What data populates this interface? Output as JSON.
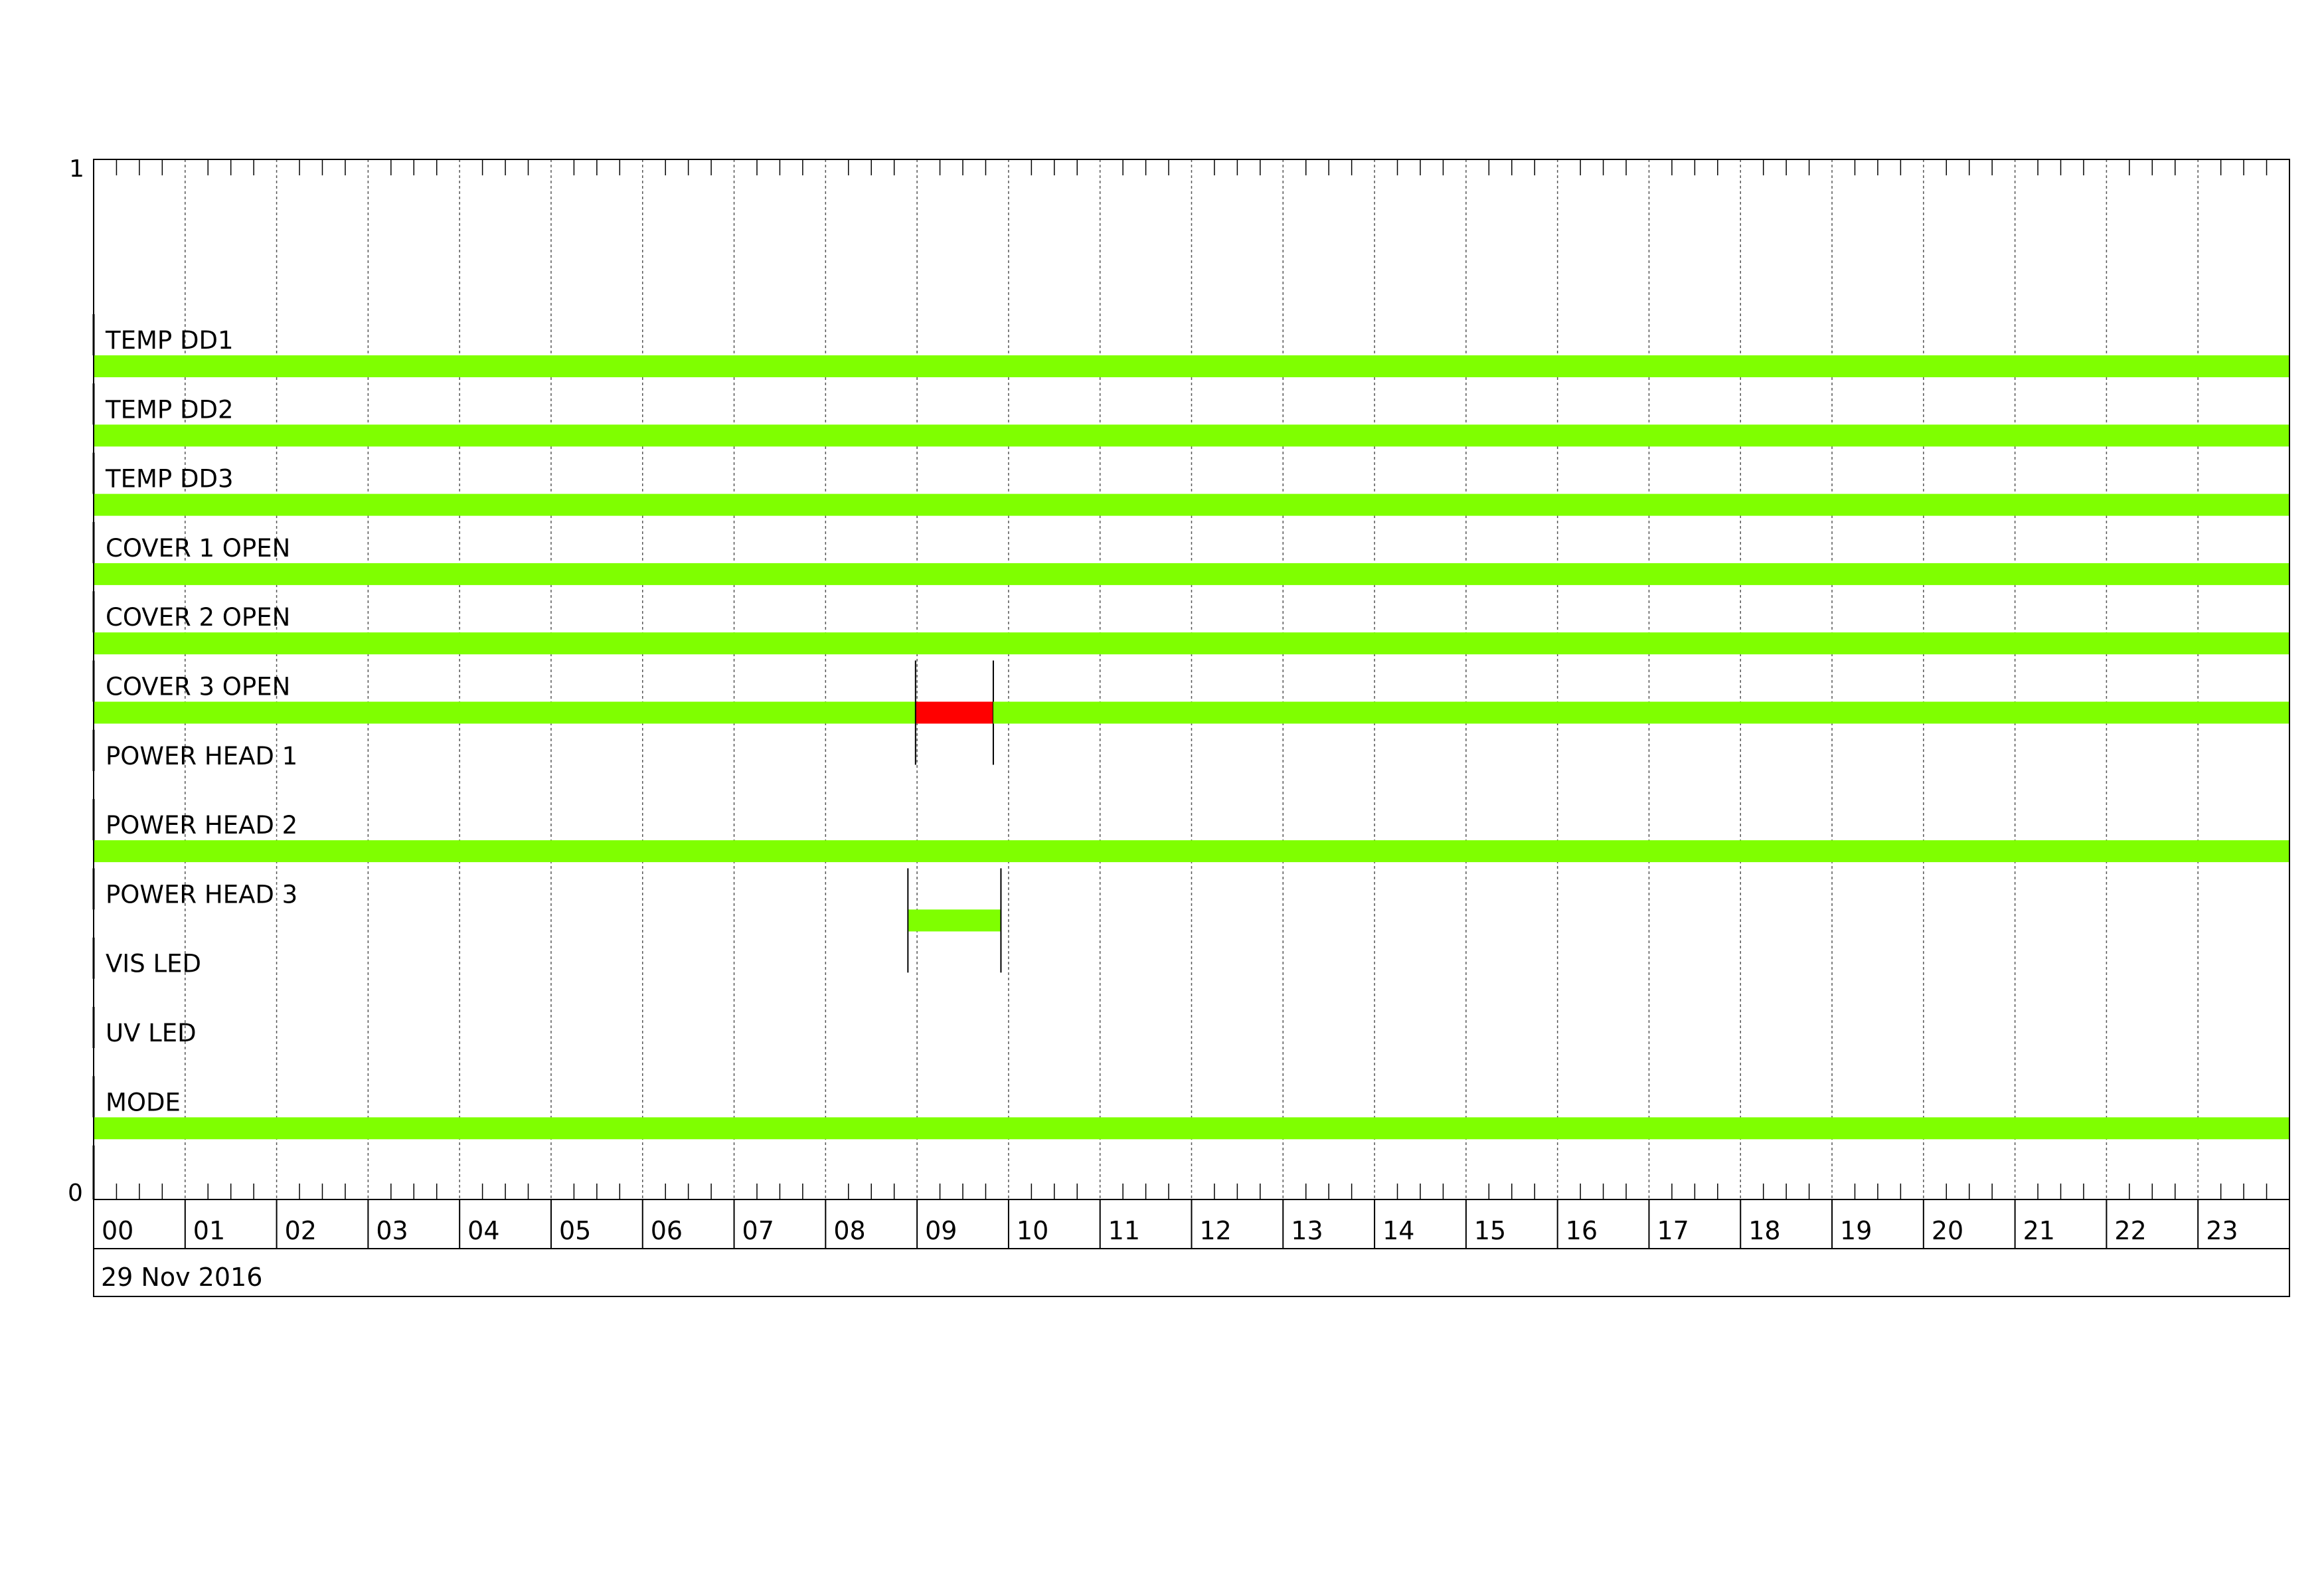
{
  "chart_data": {
    "type": "bar",
    "orientation": "horizontal-timeline",
    "ylim": [
      0,
      1
    ],
    "y_tick_labels": [
      "1",
      "0"
    ],
    "x_range": [
      "00:00",
      "24:00"
    ],
    "x_tick_labels": [
      "00",
      "01",
      "02",
      "03",
      "04",
      "05",
      "06",
      "07",
      "08",
      "09",
      "10",
      "11",
      "12",
      "13",
      "14",
      "15",
      "16",
      "17",
      "18",
      "19",
      "20",
      "21",
      "22",
      "23"
    ],
    "date_label": "29 Nov 2016",
    "grid": true,
    "colors": {
      "ok": "#7fff00",
      "alarm": "#ff0000"
    },
    "rows": [
      {
        "label": "TEMP DD1",
        "segments": [
          {
            "start": "00:00",
            "end": "24:00",
            "state": "ok"
          }
        ]
      },
      {
        "label": "TEMP DD2",
        "segments": [
          {
            "start": "00:00",
            "end": "24:00",
            "state": "ok"
          }
        ]
      },
      {
        "label": "TEMP DD3",
        "segments": [
          {
            "start": "00:00",
            "end": "24:00",
            "state": "ok"
          }
        ]
      },
      {
        "label": "COVER 1 OPEN",
        "segments": [
          {
            "start": "00:00",
            "end": "24:00",
            "state": "ok"
          }
        ]
      },
      {
        "label": "COVER 2 OPEN",
        "segments": [
          {
            "start": "00:00",
            "end": "24:00",
            "state": "ok"
          }
        ]
      },
      {
        "label": "COVER 3 OPEN",
        "segments": [
          {
            "start": "00:00",
            "end": "08:59",
            "state": "ok"
          },
          {
            "start": "08:59",
            "end": "09:50",
            "state": "alarm",
            "marked": true
          },
          {
            "start": "09:50",
            "end": "24:00",
            "state": "ok"
          }
        ]
      },
      {
        "label": "POWER HEAD 1",
        "segments": []
      },
      {
        "label": "POWER HEAD 2",
        "segments": [
          {
            "start": "00:00",
            "end": "24:00",
            "state": "ok"
          }
        ]
      },
      {
        "label": "POWER HEAD 3",
        "segments": [
          {
            "start": "08:54",
            "end": "09:55",
            "state": "ok",
            "marked": true
          }
        ]
      },
      {
        "label": "VIS LED",
        "segments": []
      },
      {
        "label": "UV LED",
        "segments": []
      },
      {
        "label": "MODE",
        "segments": [
          {
            "start": "00:00",
            "end": "24:00",
            "state": "ok"
          }
        ]
      }
    ]
  }
}
